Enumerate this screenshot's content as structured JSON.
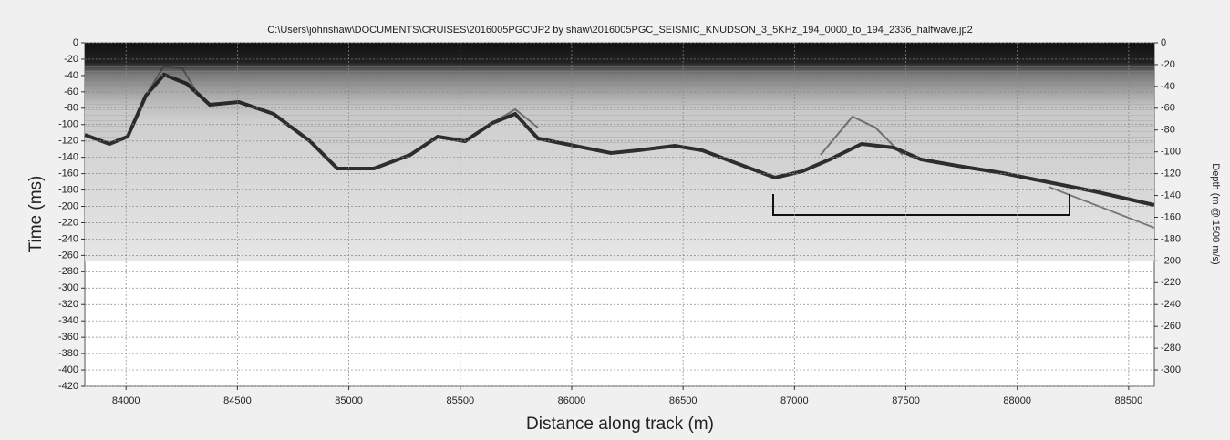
{
  "chart_data": {
    "type": "image",
    "title": "C:\\Users\\johnshaw\\DOCUMENTS\\CRUISES\\2016005PGC\\JP2  by  shaw\\2016005PGC_SEISMIC_KNUDSON_3_5KHz_194_0000_to_194_2336_halfwave.jp2",
    "x_label": "Distance along track (m)",
    "y_label": "Time (ms)",
    "y2_label": "Depth (m @ 1500 m/s)",
    "xlim": [
      83815,
      88615
    ],
    "xticks": [
      84000,
      84500,
      85000,
      85500,
      86000,
      86500,
      87000,
      87500,
      88000,
      88500
    ],
    "ylim": [
      -420,
      0
    ],
    "yticks": [
      0,
      -20,
      -40,
      -60,
      -80,
      -100,
      -120,
      -140,
      -160,
      -180,
      -200,
      -220,
      -240,
      -260,
      -280,
      -300,
      -320,
      -340,
      -360,
      -380,
      -400,
      -420
    ],
    "y2lim": [
      -315,
      0
    ],
    "y2ticks": [
      0,
      -20,
      -40,
      -60,
      -80,
      -100,
      -120,
      -140,
      -160,
      -180,
      -200,
      -220,
      -240,
      -260,
      -280,
      -300
    ],
    "grid": true
  }
}
